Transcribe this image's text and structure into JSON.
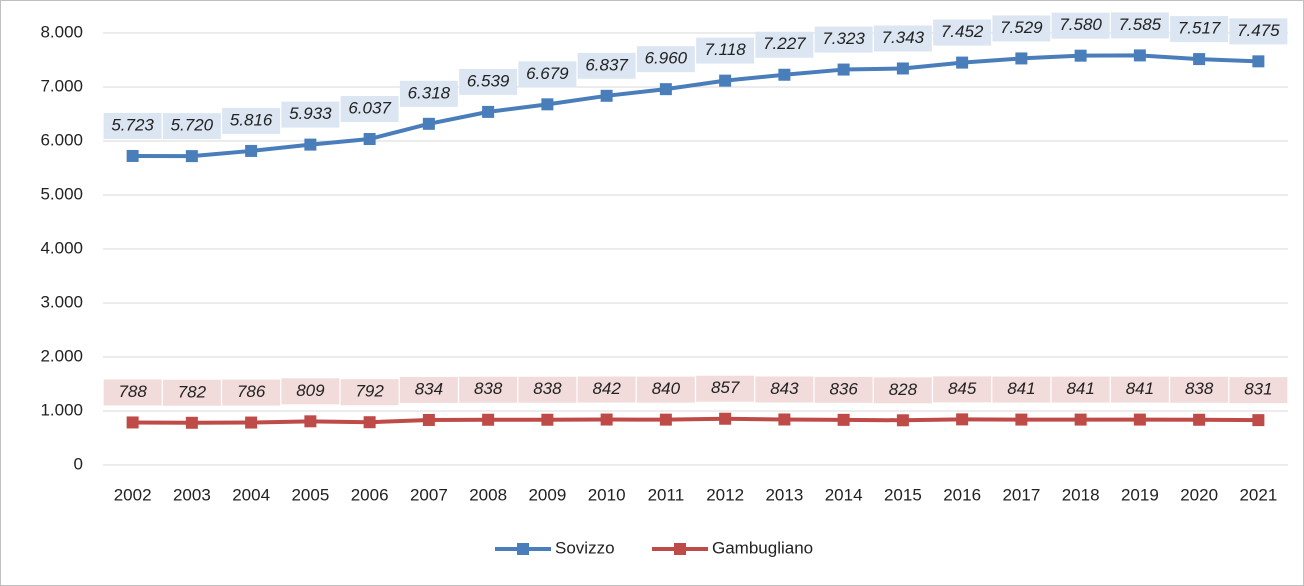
{
  "chart_data": {
    "type": "line",
    "categories": [
      "2002",
      "2003",
      "2004",
      "2005",
      "2006",
      "2007",
      "2008",
      "2009",
      "2010",
      "2011",
      "2012",
      "2013",
      "2014",
      "2015",
      "2016",
      "2017",
      "2018",
      "2019",
      "2020",
      "2021"
    ],
    "series": [
      {
        "name": "Sovizzo",
        "color": "#4a7ebb",
        "label_bg": "#dce6f2",
        "values": [
          5723,
          5720,
          5816,
          5933,
          6037,
          6318,
          6539,
          6679,
          6837,
          6960,
          7118,
          7227,
          7323,
          7343,
          7452,
          7529,
          7580,
          7585,
          7517,
          7475
        ],
        "value_labels": [
          "5.723",
          "5.720",
          "5.816",
          "5.933",
          "6.037",
          "6.318",
          "6.539",
          "6.679",
          "6.837",
          "6.960",
          "7.118",
          "7.227",
          "7.323",
          "7.343",
          "7.452",
          "7.529",
          "7.580",
          "7.585",
          "7.517",
          "7.475"
        ]
      },
      {
        "name": "Gambugliano",
        "color": "#be4b48",
        "label_bg": "#f2dcdb",
        "values": [
          788,
          782,
          786,
          809,
          792,
          834,
          838,
          838,
          842,
          840,
          857,
          843,
          836,
          828,
          845,
          841,
          841,
          841,
          838,
          831
        ]
      }
    ],
    "ylim": [
      0,
      8000
    ],
    "yticks": [
      0,
      {
        "value": 1000,
        "label": "1.000"
      },
      {
        "value": 2000,
        "label": "2.000"
      },
      {
        "value": 3000,
        "label": "3.000"
      },
      {
        "value": 4000,
        "label": "4.000"
      },
      {
        "value": 5000,
        "label": "5.000"
      },
      {
        "value": 6000,
        "label": "6.000"
      },
      {
        "value": 7000,
        "label": "7.000"
      },
      {
        "value": 8000,
        "label": "8.000"
      }
    ],
    "grid": true,
    "legend": "bottom"
  }
}
